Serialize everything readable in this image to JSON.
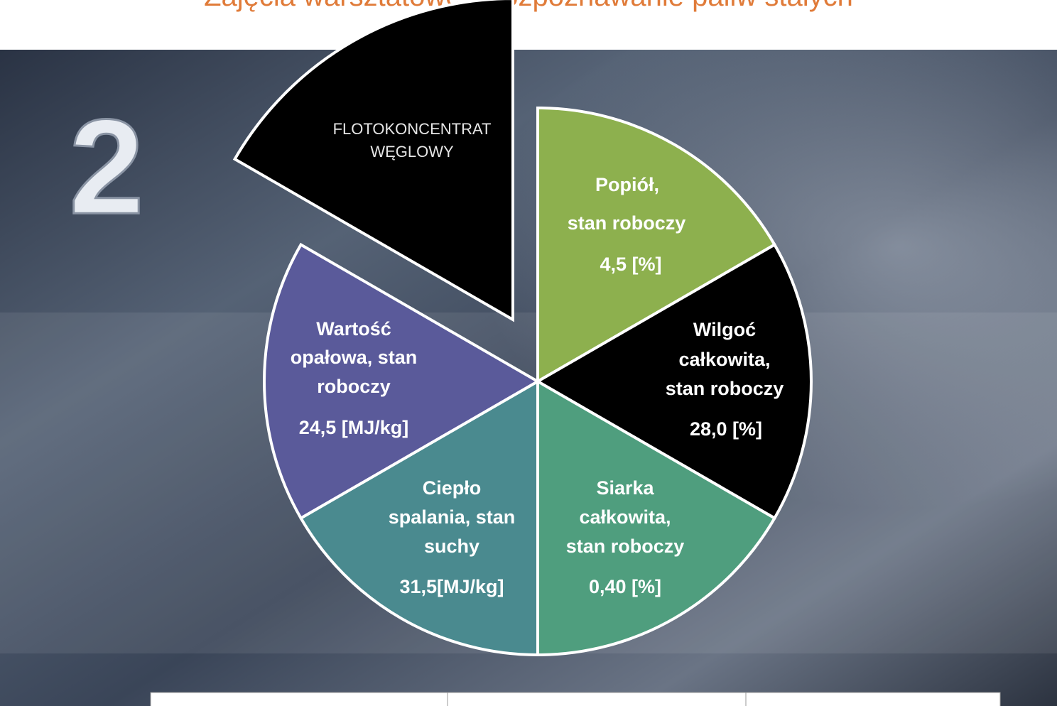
{
  "title": "Zajęcia warsztatowe – rozpoznawanie paliw stałych",
  "slide_number": "2",
  "center": {
    "lines": [
      "FLOTOKONCENTRAT",
      "WĘGLOWY"
    ]
  },
  "segments": [
    {
      "lines": [
        "Popiół,",
        "stan roboczy",
        "4,5 [%]"
      ]
    },
    {
      "lines": [
        "Wilgoć",
        "całkowita,",
        "stan roboczy",
        "28,0 [%]"
      ]
    },
    {
      "lines": [
        "Siarka",
        "całkowita,",
        "stan roboczy",
        "0,40 [%]"
      ]
    },
    {
      "lines": [
        "Ciepło",
        "spalania, stan",
        "suchy",
        "31,5[MJ/kg]"
      ]
    },
    {
      "lines": [
        "Wartość",
        "opałowa, stan",
        "roboczy",
        "24,5 [MJ/kg]"
      ]
    }
  ]
}
